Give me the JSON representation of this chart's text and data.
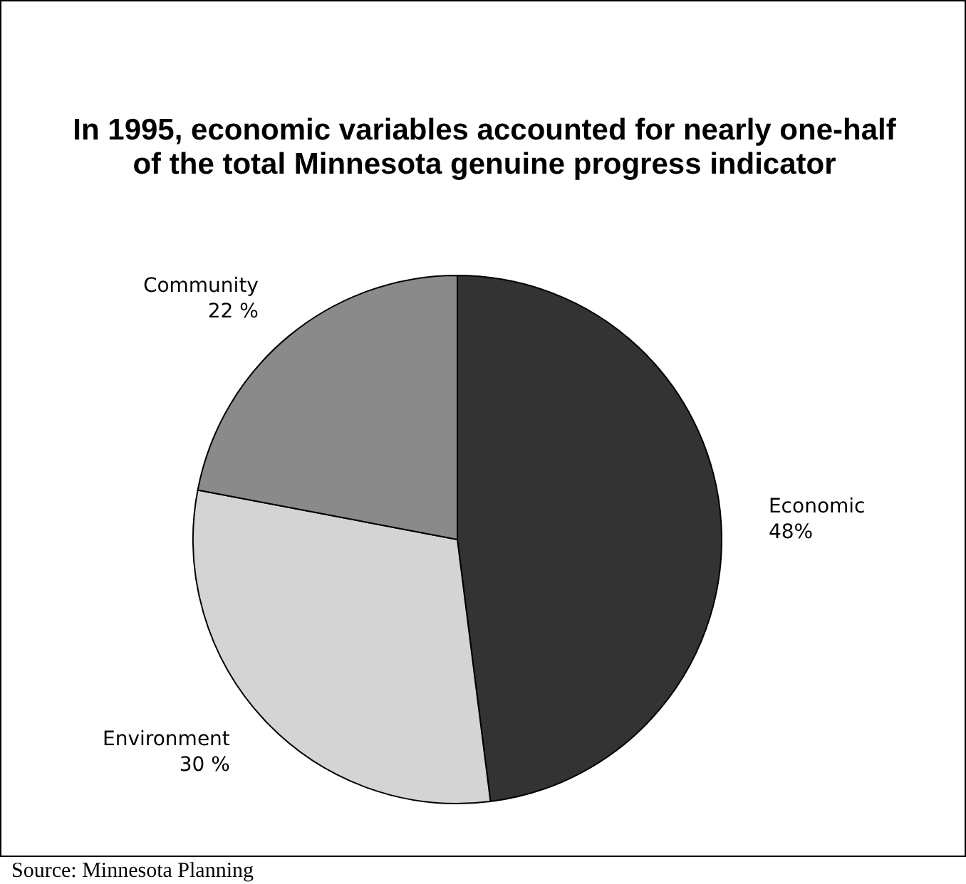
{
  "chart_data": {
    "type": "pie",
    "title": "In 1995, economic variables accounted for nearly one-half of the total Minnesota genuine progress indicator",
    "categories": [
      "Economic",
      "Environment",
      "Community"
    ],
    "values": [
      48,
      30,
      22
    ],
    "value_labels": [
      "48%",
      "30 %",
      "22 %"
    ],
    "colors": [
      "#333333",
      "#d4d4d4",
      "#8a8a8a"
    ],
    "legend": false,
    "annotations": [
      "Source: Minnesota Planning"
    ]
  }
}
